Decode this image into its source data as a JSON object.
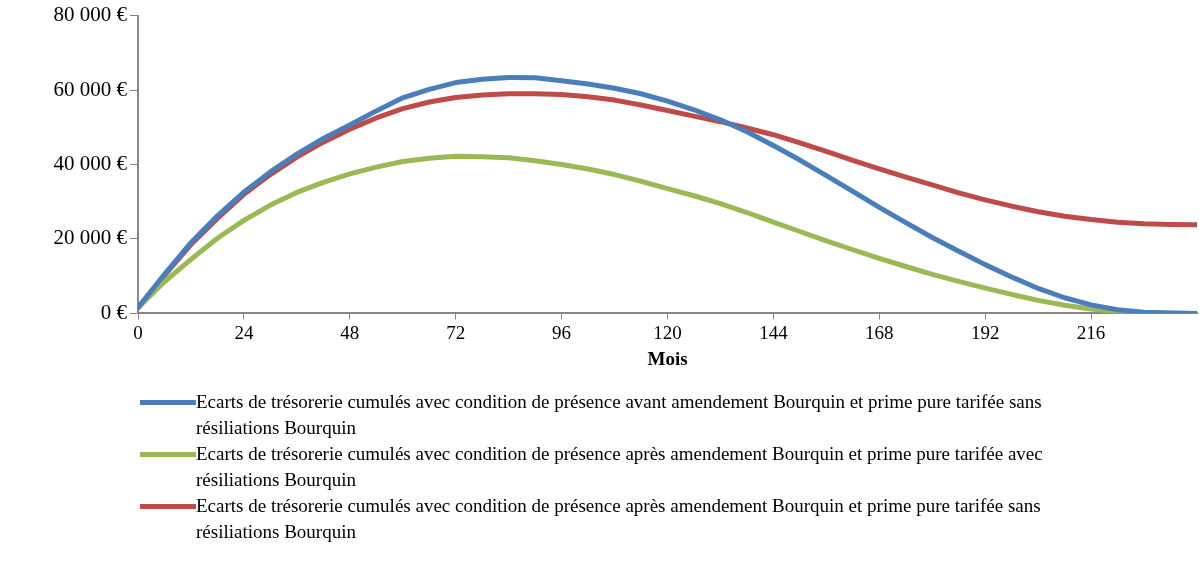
{
  "chart_data": {
    "type": "line",
    "xlabel": "Mois",
    "x": [
      0,
      6,
      12,
      18,
      24,
      30,
      36,
      42,
      48,
      54,
      60,
      66,
      72,
      78,
      84,
      90,
      96,
      102,
      108,
      114,
      120,
      126,
      132,
      138,
      144,
      150,
      156,
      162,
      168,
      174,
      180,
      186,
      192,
      198,
      204,
      210,
      216,
      222,
      228,
      234,
      240
    ],
    "xlim": [
      0,
      240
    ],
    "xticks": [
      0,
      24,
      48,
      72,
      96,
      120,
      144,
      168,
      192,
      216
    ],
    "ylim": [
      0,
      80000
    ],
    "yticks": [
      {
        "value": 0,
        "label": "0 €"
      },
      {
        "value": 20000,
        "label": "20 000 €"
      },
      {
        "value": 40000,
        "label": "40 000 €"
      },
      {
        "value": 60000,
        "label": "60 000 €"
      },
      {
        "value": 80000,
        "label": "80 000 €"
      }
    ],
    "grid": false,
    "legend": "bottom",
    "marker": "none",
    "line_style": "solid",
    "series": [
      {
        "name": "Ecarts de trésorerie cumulés avec condition de présence avant amendement Bourquin et prime pure tarifée sans résiliations Bourquin",
        "color": "#4a7ebb",
        "values": [
          1500,
          10500,
          19000,
          26200,
          32600,
          38000,
          42800,
          47000,
          50600,
          54400,
          57900,
          60200,
          62000,
          62900,
          63400,
          63300,
          62500,
          61600,
          60500,
          59000,
          57000,
          54700,
          52000,
          48800,
          45100,
          41200,
          37000,
          32800,
          28500,
          24400,
          20400,
          16700,
          13100,
          9800,
          6700,
          4200,
          2300,
          1000,
          300,
          100,
          0
        ]
      },
      {
        "name": "Ecarts de trésorerie cumulés avec condition de présence après amendement Bourquin et prime pure tarifée avec résiliations Bourquin",
        "color": "#98b954",
        "values": [
          1500,
          8500,
          14500,
          20200,
          25000,
          29100,
          32500,
          35200,
          37500,
          39300,
          40800,
          41700,
          42200,
          42100,
          41800,
          41000,
          40000,
          38800,
          37300,
          35500,
          33500,
          31600,
          29500,
          27100,
          24500,
          22000,
          19500,
          17100,
          14800,
          12600,
          10500,
          8600,
          6800,
          5100,
          3500,
          2200,
          1200,
          500,
          200,
          50,
          0
        ]
      },
      {
        "name": "Ecarts de trésorerie cumulés avec condition de présence après amendement Bourquin et prime pure tarifée sans résiliations Bourquin",
        "color": "#be4b48",
        "values": [
          1500,
          10200,
          18500,
          25500,
          32000,
          37300,
          42000,
          46000,
          49500,
          52500,
          55000,
          56800,
          58000,
          58700,
          59000,
          59000,
          58800,
          58200,
          57300,
          56000,
          54500,
          53000,
          51500,
          49800,
          48000,
          45800,
          43500,
          41100,
          38800,
          36600,
          34500,
          32400,
          30500,
          28800,
          27300,
          26100,
          25200,
          24500,
          24100,
          23900,
          23800
        ]
      }
    ]
  }
}
